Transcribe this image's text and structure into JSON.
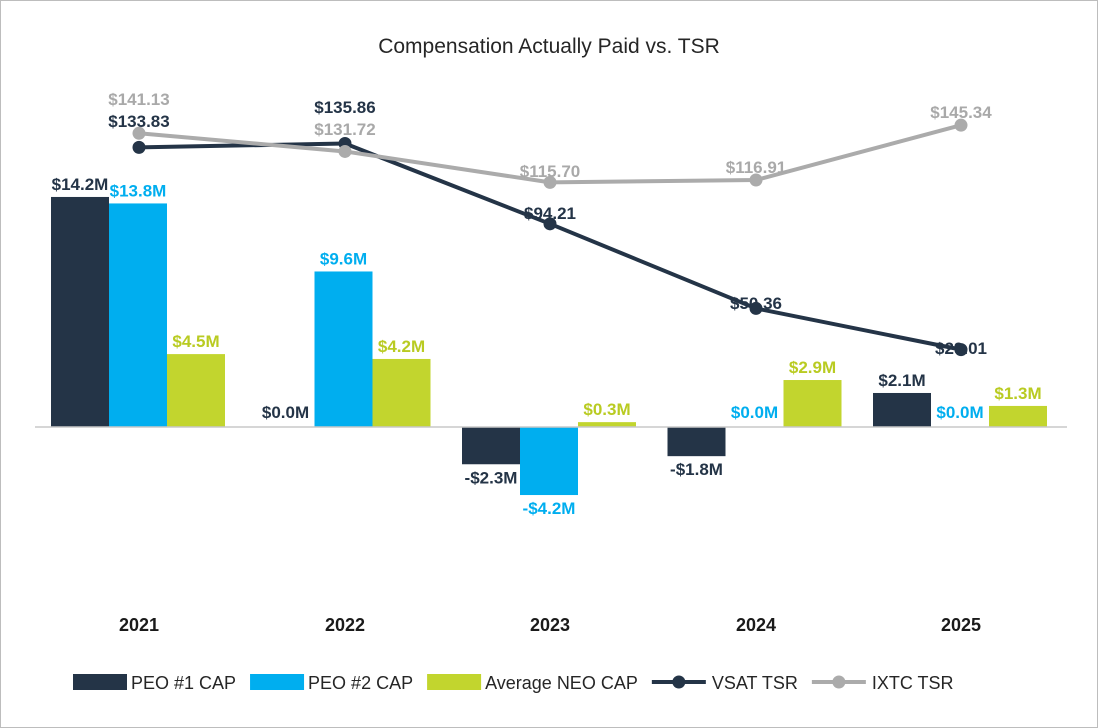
{
  "chart_data": {
    "type": "bar",
    "title": "Compensation Actually Paid vs. TSR",
    "categories": [
      "2021",
      "2022",
      "2023",
      "2024",
      "2025"
    ],
    "series": [
      {
        "name": "PEO #1 CAP",
        "kind": "bar",
        "color": "#243447",
        "values": [
          14.2,
          0.0,
          -2.3,
          -1.8,
          2.1
        ],
        "labels": [
          "$14.2M",
          "$0.0M",
          "-$2.3M",
          "-$1.8M",
          "$2.1M"
        ]
      },
      {
        "name": "PEO #2 CAP",
        "kind": "bar",
        "color": "#00AEEF",
        "values": [
          13.8,
          9.6,
          -4.2,
          0.0,
          0.0
        ],
        "labels": [
          "$13.8M",
          "$9.6M",
          "-$4.2M",
          "$0.0M",
          "$0.0M"
        ]
      },
      {
        "name": "Average NEO CAP",
        "kind": "bar",
        "color": "#C2D52E",
        "values": [
          4.5,
          4.2,
          0.3,
          2.9,
          1.3
        ],
        "labels": [
          "$4.5M",
          "$4.2M",
          "$0.3M",
          "$2.9M",
          "$1.3M"
        ]
      },
      {
        "name": "VSAT TSR",
        "kind": "line",
        "color": "#243447",
        "values": [
          133.83,
          135.86,
          94.21,
          50.36,
          29.01
        ],
        "labels": [
          "$133.83",
          "$135.86",
          "$94.21",
          "$50.36",
          "$29.01"
        ]
      },
      {
        "name": "IXTC TSR",
        "kind": "line",
        "color": "#ABABAB",
        "values": [
          141.13,
          131.72,
          115.7,
          116.91,
          145.34
        ],
        "labels": [
          "$141.13",
          "$131.72",
          "$115.70",
          "$116.91",
          "$145.34"
        ]
      }
    ],
    "grid": false,
    "legend": "bottom"
  }
}
